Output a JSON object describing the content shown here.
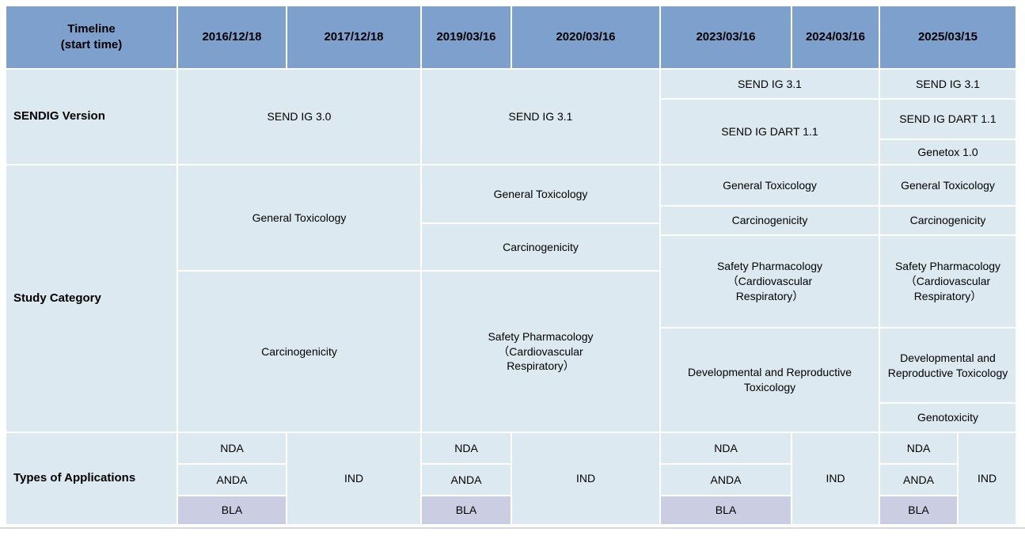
{
  "colors": {
    "header_bg": "#7DA0CD",
    "cell_bg": "#DCE9F1",
    "bla_bg": "#CBCEE2",
    "grid_line": "#FFFFFF",
    "text": "#000000",
    "bottom_rule": "#D8D8D8"
  },
  "header": {
    "row_label_line1": "Timeline",
    "row_label_line2": "(start time)",
    "dates": [
      "2016/12/18",
      "2017/12/18",
      "2019/03/16",
      "2020/03/16",
      "2023/03/16",
      "2024/03/16",
      "2025/03/15"
    ]
  },
  "sendig": {
    "row_label": "SENDIG Version",
    "ig30_2016_2017": "SEND IG 3.0",
    "ig31_2019_2020": "SEND IG 3.1",
    "ig31_2023_2024": "SEND IG 3.1",
    "dart_2023_2024": "SEND IG DART 1.1",
    "ig31_2025": "SEND IG 3.1",
    "dart_2025": "SEND IG DART 1.1",
    "genetox_2025": "Genetox 1.0"
  },
  "study": {
    "row_label": "Study Category",
    "general_toxicology": "General Toxicology",
    "carcinogenicity": "Carcinogenicity",
    "safety_pharmacology": "Safety Pharmacology\n（Cardiovascular\nRespiratory）",
    "developmental_reproductive": "Developmental and Reproductive Toxicology",
    "genotoxicity": "Genotoxicity"
  },
  "apps": {
    "row_label": "Types of Applications",
    "nda": "NDA",
    "anda": "ANDA",
    "bla": "BLA",
    "ind": "IND"
  },
  "chart_data": {
    "type": "table",
    "title": "SEND implementation timeline by FDA requirement start date",
    "columns": [
      "2016/12/18",
      "2017/12/18",
      "2019/03/16",
      "2020/03/16",
      "2023/03/16",
      "2024/03/16",
      "2025/03/15"
    ],
    "rows": [
      {
        "label": "SENDIG Version",
        "values_by_column_group": [
          {
            "columns": [
              "2016/12/18",
              "2017/12/18"
            ],
            "values": [
              "SEND IG 3.0"
            ]
          },
          {
            "columns": [
              "2019/03/16",
              "2020/03/16"
            ],
            "values": [
              "SEND IG 3.1"
            ]
          },
          {
            "columns": [
              "2023/03/16",
              "2024/03/16"
            ],
            "values": [
              "SEND IG 3.1",
              "SEND IG DART 1.1"
            ]
          },
          {
            "columns": [
              "2025/03/15"
            ],
            "values": [
              "SEND IG 3.1",
              "SEND IG DART 1.1",
              "Genetox 1.0"
            ]
          }
        ]
      },
      {
        "label": "Study Category",
        "values_by_column_group": [
          {
            "columns": [
              "2016/12/18",
              "2017/12/18"
            ],
            "values": [
              "General Toxicology",
              "Carcinogenicity"
            ]
          },
          {
            "columns": [
              "2019/03/16",
              "2020/03/16"
            ],
            "values": [
              "General Toxicology",
              "Carcinogenicity",
              "Safety Pharmacology（Cardiovascular Respiratory）"
            ]
          },
          {
            "columns": [
              "2023/03/16",
              "2024/03/16"
            ],
            "values": [
              "General Toxicology",
              "Carcinogenicity",
              "Safety Pharmacology（Cardiovascular Respiratory）",
              "Developmental and Reproductive Toxicology"
            ]
          },
          {
            "columns": [
              "2025/03/15"
            ],
            "values": [
              "General Toxicology",
              "Carcinogenicity",
              "Safety Pharmacology（Cardiovascular Respiratory）",
              "Developmental and Reproductive Toxicology",
              "Genotoxicity"
            ]
          }
        ]
      },
      {
        "label": "Types of Applications",
        "values_by_column_group": [
          {
            "columns": [
              "2016/12/18"
            ],
            "values": [
              "NDA",
              "ANDA",
              "BLA"
            ]
          },
          {
            "columns": [
              "2017/12/18"
            ],
            "values": [
              "IND"
            ]
          },
          {
            "columns": [
              "2019/03/16"
            ],
            "values": [
              "NDA",
              "ANDA",
              "BLA"
            ]
          },
          {
            "columns": [
              "2020/03/16"
            ],
            "values": [
              "IND"
            ]
          },
          {
            "columns": [
              "2023/03/16"
            ],
            "values": [
              "NDA",
              "ANDA",
              "BLA"
            ]
          },
          {
            "columns": [
              "2024/03/16"
            ],
            "values": [
              "IND"
            ]
          },
          {
            "columns": [
              "2025/03/15"
            ],
            "values": [
              "NDA",
              "ANDA",
              "BLA",
              "IND"
            ]
          }
        ]
      }
    ]
  }
}
